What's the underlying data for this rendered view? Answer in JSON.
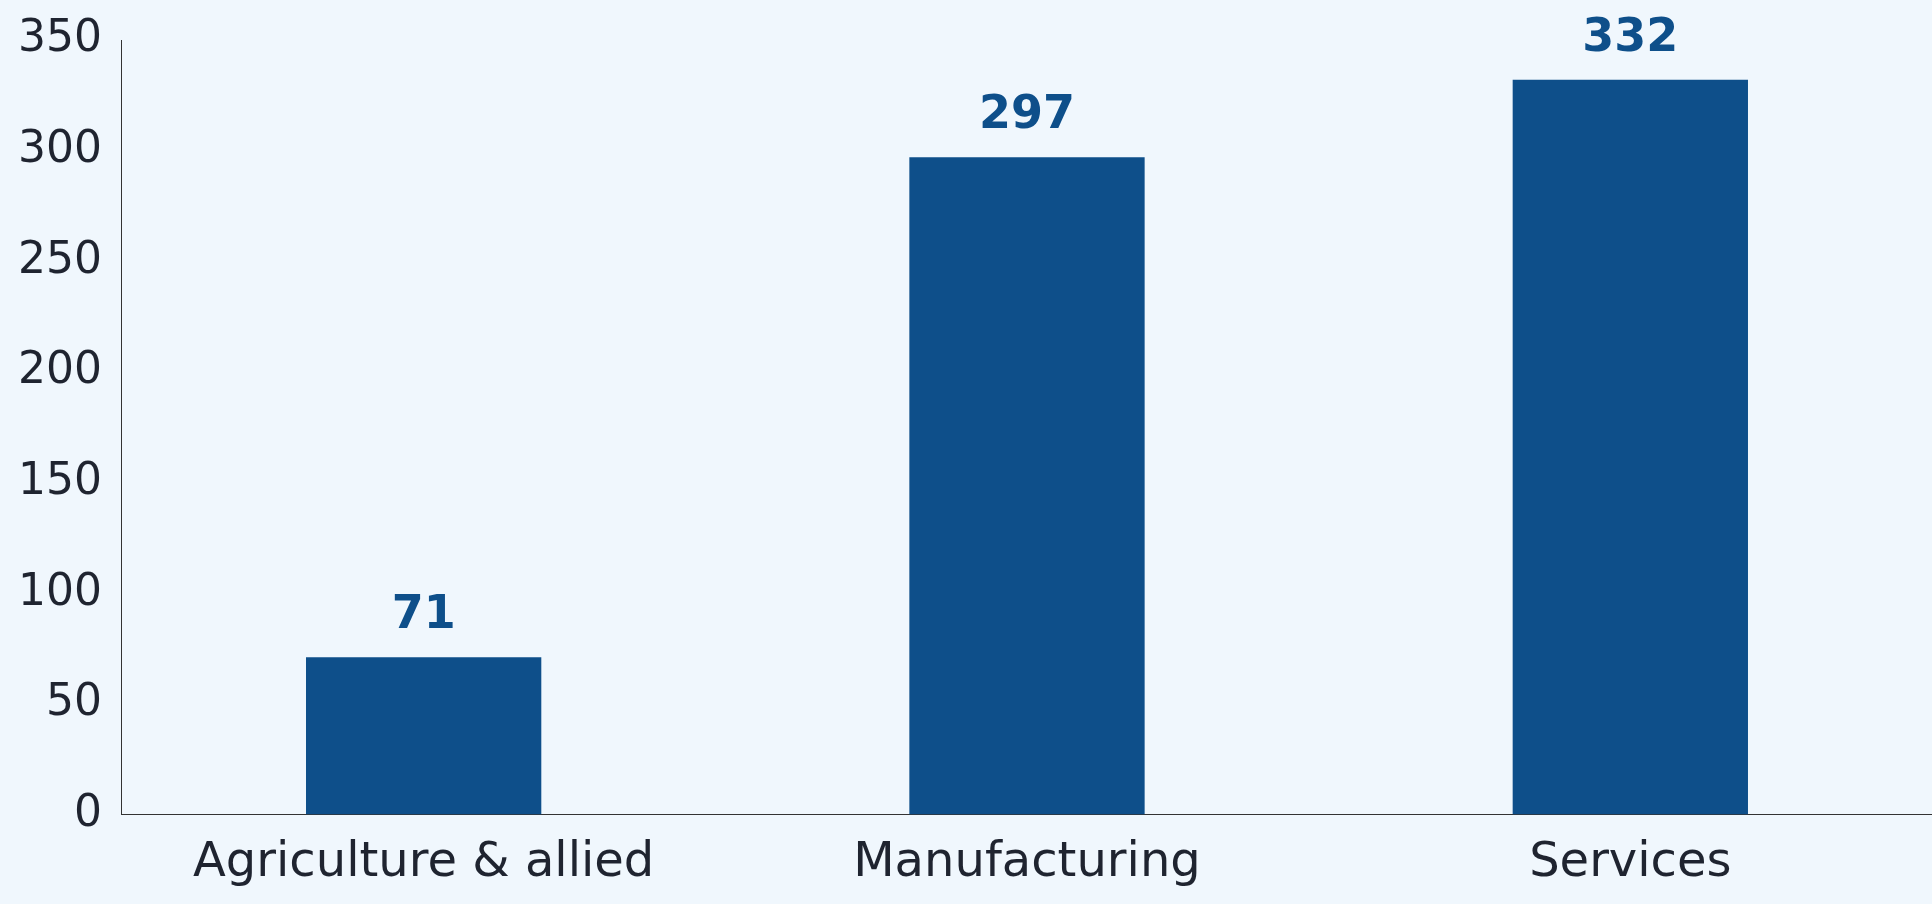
{
  "chart_data": {
    "type": "bar",
    "categories": [
      "Agriculture & allied",
      "Manufacturing",
      "Services"
    ],
    "values": [
      71,
      297,
      332
    ],
    "color": "#0e4f8a",
    "ylim": [
      0,
      350
    ],
    "yticks": [
      0,
      50,
      100,
      150,
      200,
      250,
      300,
      350
    ],
    "data_labels": true
  }
}
